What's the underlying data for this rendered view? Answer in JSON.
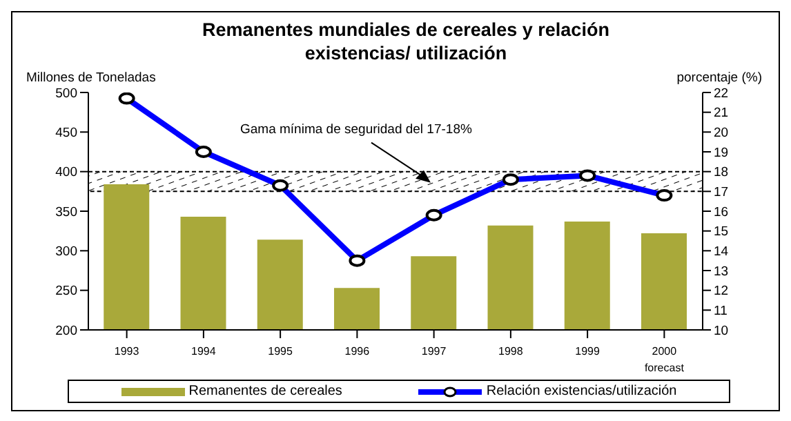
{
  "chart_data": {
    "type": "bar",
    "title": "Remanentes mundiales de cereales y relación existencias/ utilización",
    "ylabel": "Millones de Toneladas",
    "y2label": "porcentaje (%)",
    "categories": [
      "1993",
      "1994",
      "1995",
      "1996",
      "1997",
      "1998",
      "1999",
      "2000\nforecast"
    ],
    "series": [
      {
        "name": "Remanentes de cereales",
        "color": "#a9a93a",
        "values": [
          384,
          343,
          314,
          253,
          293,
          332,
          337,
          322
        ]
      },
      {
        "name": "Relación existencias/utilización",
        "type": "line",
        "axis": "y2",
        "color": "#0000ff",
        "marker": "circle",
        "values": [
          21.7,
          19.0,
          17.3,
          13.5,
          15.8,
          17.6,
          17.8,
          16.8
        ]
      }
    ],
    "ylim": [
      200,
      500
    ],
    "yticks": [
      200,
      250,
      300,
      350,
      400,
      450,
      500
    ],
    "y2lim": [
      10,
      22
    ],
    "y2ticks": [
      10,
      11,
      12,
      13,
      14,
      15,
      16,
      17,
      18,
      19,
      20,
      21,
      22
    ],
    "bands": [
      {
        "axis": "y2",
        "from": 17,
        "to": 18,
        "label": "Gama mínima de seguridad del 17-18%"
      }
    ],
    "grid": false,
    "legend": "bottom"
  }
}
